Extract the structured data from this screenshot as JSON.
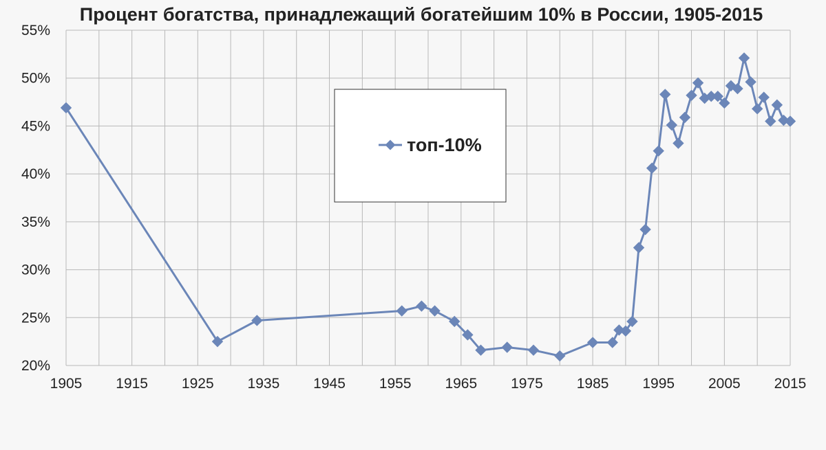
{
  "colors": {
    "background": "#f7f7f7",
    "grid": "#b8b8b8",
    "series": "#6b86b8",
    "text": "#222222"
  },
  "chart_data": {
    "type": "line",
    "title": "Процент богатства, принадлежащий богатейшим 10% в России, 1905-2015",
    "xlabel": "",
    "ylabel": "",
    "xlim": [
      1905,
      2015
    ],
    "ylim": [
      20,
      55
    ],
    "x_ticks": [
      "1905",
      "1915",
      "1925",
      "1935",
      "1945",
      "1955",
      "1965",
      "1975",
      "1985",
      "1995",
      "2005",
      "2015"
    ],
    "y_ticks": [
      "20%",
      "25%",
      "30%",
      "35%",
      "40%",
      "45%",
      "50%",
      "55%"
    ],
    "grid": true,
    "x_grid_step": 5,
    "legend_position": "center-left",
    "marker": "diamond",
    "series": [
      {
        "name": "топ-10%",
        "points": [
          [
            1905,
            46.9
          ],
          [
            1928,
            22.5
          ],
          [
            1934,
            24.7
          ],
          [
            1956,
            25.7
          ],
          [
            1959,
            26.2
          ],
          [
            1961,
            25.7
          ],
          [
            1964,
            24.6
          ],
          [
            1966,
            23.2
          ],
          [
            1968,
            21.6
          ],
          [
            1972,
            21.9
          ],
          [
            1976,
            21.6
          ],
          [
            1980,
            21.0
          ],
          [
            1985,
            22.4
          ],
          [
            1988,
            22.4
          ],
          [
            1989,
            23.7
          ],
          [
            1990,
            23.6
          ],
          [
            1991,
            24.6
          ],
          [
            1992,
            32.3
          ],
          [
            1993,
            34.2
          ],
          [
            1994,
            40.6
          ],
          [
            1995,
            42.4
          ],
          [
            1996,
            48.3
          ],
          [
            1997,
            45.1
          ],
          [
            1998,
            43.2
          ],
          [
            1999,
            45.9
          ],
          [
            2000,
            48.2
          ],
          [
            2001,
            49.5
          ],
          [
            2002,
            47.9
          ],
          [
            2003,
            48.1
          ],
          [
            2004,
            48.1
          ],
          [
            2005,
            47.4
          ],
          [
            2006,
            49.2
          ],
          [
            2007,
            48.9
          ],
          [
            2008,
            52.1
          ],
          [
            2009,
            49.6
          ],
          [
            2010,
            46.8
          ],
          [
            2011,
            48.0
          ],
          [
            2012,
            45.5
          ],
          [
            2013,
            47.2
          ],
          [
            2014,
            45.6
          ],
          [
            2015,
            45.5
          ]
        ]
      }
    ]
  }
}
